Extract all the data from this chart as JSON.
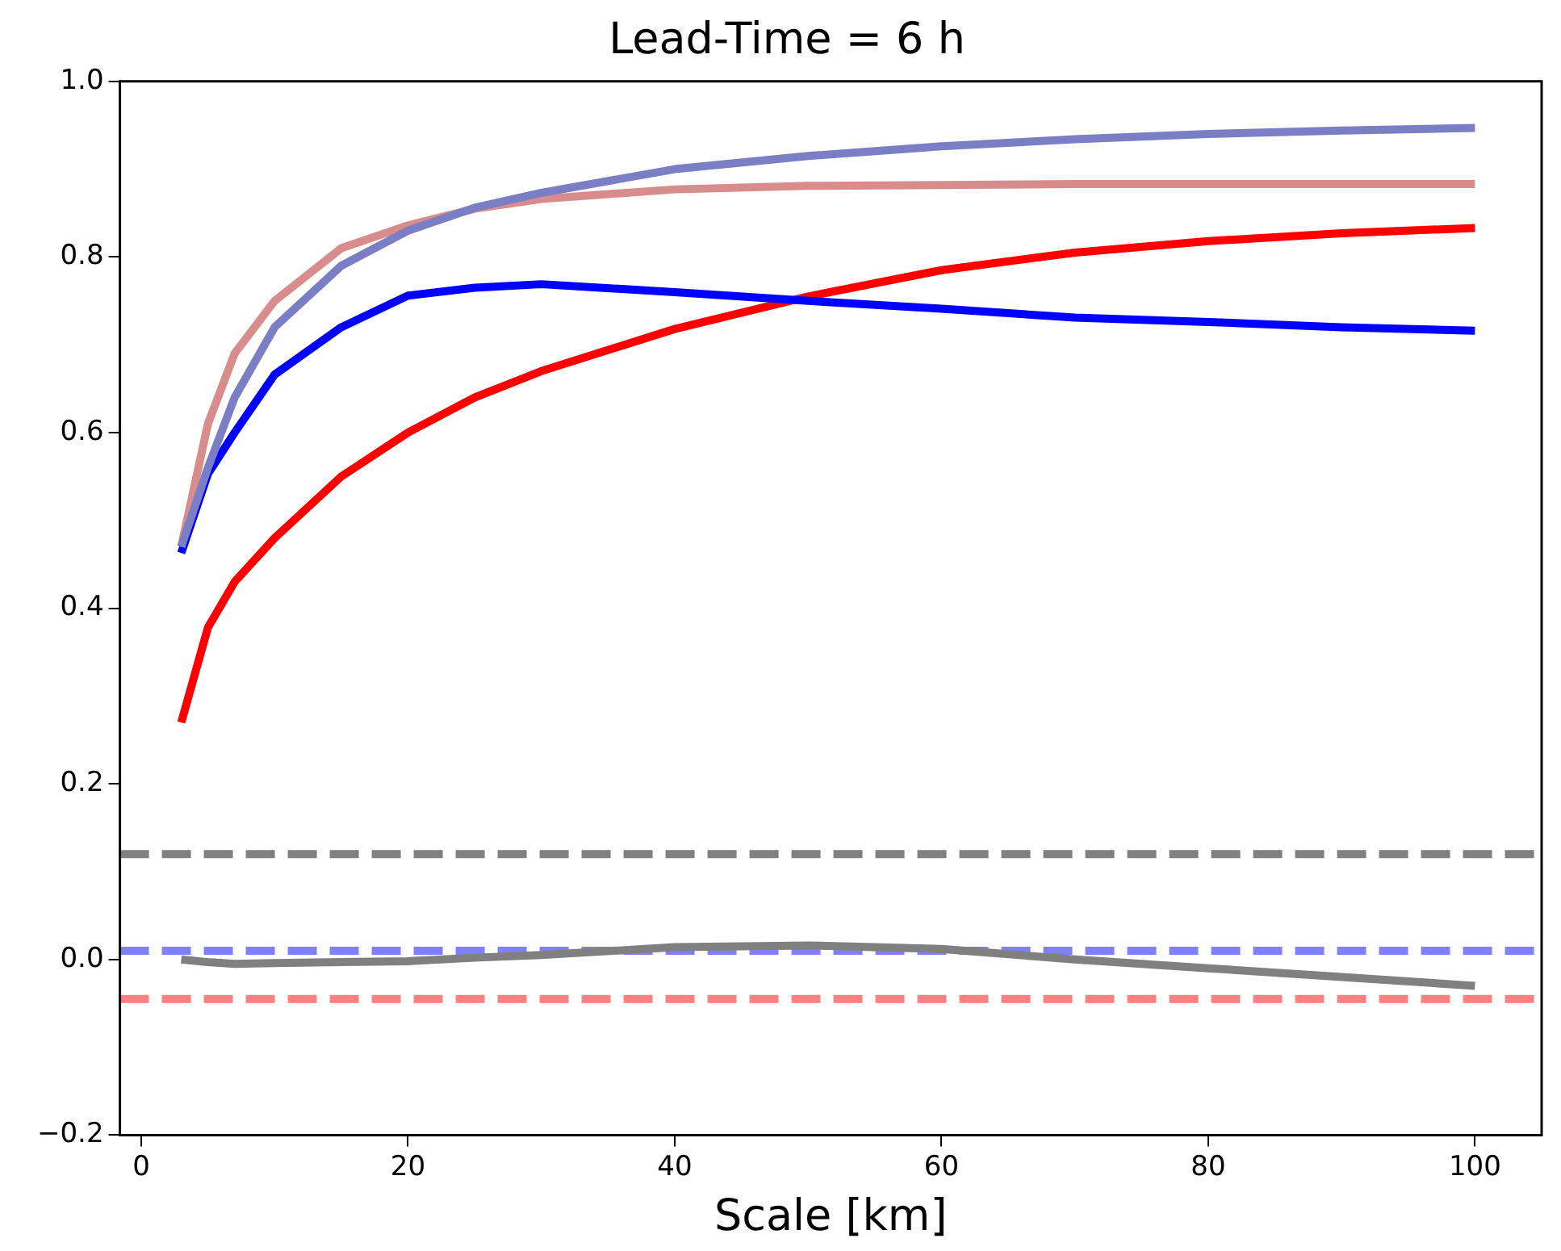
{
  "chart_data": {
    "type": "line",
    "title": "Lead-Time = 6 h",
    "xlabel": "Scale [km]",
    "xlim": [
      -1.6,
      105
    ],
    "xticks": [
      0,
      20,
      40,
      60,
      80,
      100
    ],
    "ylim": [
      -0.2,
      1.0
    ],
    "yticks": [
      {
        "value": -0.2,
        "label": "−0.2"
      },
      {
        "value": 0,
        "label": "0.0"
      },
      {
        "value": 0.2,
        "label": "0.2"
      },
      {
        "value": 0.4,
        "label": "0.4"
      },
      {
        "value": 0.6,
        "label": "0.6"
      },
      {
        "value": 0.8,
        "label": "0.8"
      },
      {
        "value": 1.0,
        "label": "1.0"
      }
    ],
    "grid": false,
    "legend": false,
    "marker": "none",
    "line_style": "solid",
    "x": [
      3,
      5,
      7,
      10,
      15,
      20,
      25,
      30,
      40,
      50,
      60,
      70,
      80,
      90,
      100
    ],
    "series": [
      {
        "color": "#7a7ec4",
        "values": [
          0.47,
          0.56,
          0.64,
          0.72,
          0.79,
          0.83,
          0.856,
          0.873,
          0.9,
          0.915,
          0.926,
          0.934,
          0.94,
          0.944,
          0.947
        ]
      },
      {
        "color": "#d98c8c",
        "values": [
          0.47,
          0.61,
          0.69,
          0.75,
          0.81,
          0.836,
          0.855,
          0.866,
          0.877,
          0.881,
          0.882,
          0.883,
          0.883,
          0.883,
          0.883
        ]
      },
      {
        "color": "#0000ff",
        "values": [
          0.463,
          0.553,
          0.6,
          0.666,
          0.72,
          0.756,
          0.765,
          0.769,
          0.76,
          0.75,
          0.741,
          0.731,
          0.726,
          0.72,
          0.716
        ]
      },
      {
        "color": "#ff0000",
        "values": [
          0.27,
          0.378,
          0.43,
          0.48,
          0.55,
          0.6,
          0.64,
          0.67,
          0.718,
          0.755,
          0.785,
          0.805,
          0.818,
          0.827,
          0.833
        ]
      },
      {
        "color": "#808080",
        "values": [
          0.0,
          -0.003,
          -0.005,
          -0.004,
          -0.003,
          -0.002,
          0.002,
          0.005,
          0.014,
          0.016,
          0.012,
          0.0,
          -0.01,
          -0.02,
          -0.03
        ]
      }
    ],
    "ref_lines": [
      {
        "axis": "y",
        "value": 0.12,
        "color": "#808080",
        "line_style": "dashed"
      },
      {
        "axis": "y",
        "value": 0.01,
        "color": "#8080ff",
        "line_style": "dashed"
      },
      {
        "axis": "y",
        "value": -0.045,
        "color": "#ff8080",
        "line_style": "dashed"
      }
    ]
  }
}
